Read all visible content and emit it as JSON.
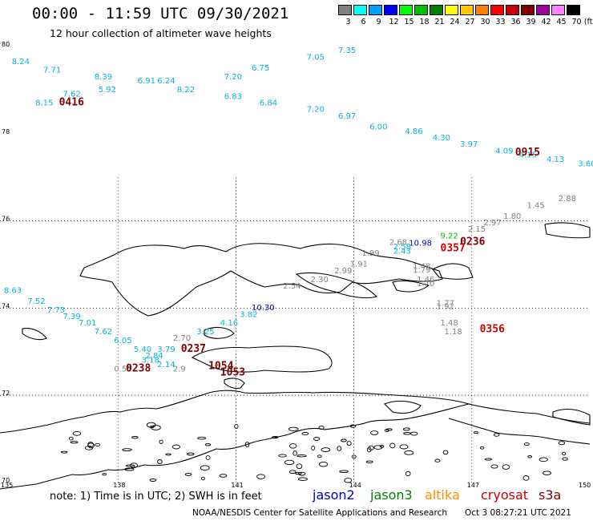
{
  "header": {
    "title": "00:00 - 11:59 UTC 09/30/2021",
    "subtitle": "12 hour collection of altimeter wave heights"
  },
  "colorbar": {
    "unit": "(ft)",
    "swatches": [
      {
        "label": "3",
        "color": "#808080"
      },
      {
        "label": "6",
        "color": "#00ffff"
      },
      {
        "label": "9",
        "color": "#00a0ff"
      },
      {
        "label": "12",
        "color": "#0000ff"
      },
      {
        "label": "15",
        "color": "#00ff00"
      },
      {
        "label": "18",
        "color": "#00c000"
      },
      {
        "label": "21",
        "color": "#008000"
      },
      {
        "label": "24",
        "color": "#ffff00"
      },
      {
        "label": "27",
        "color": "#ffc800"
      },
      {
        "label": "30",
        "color": "#ff8000"
      },
      {
        "label": "33",
        "color": "#ff0000"
      },
      {
        "label": "36",
        "color": "#c80000"
      },
      {
        "label": "39",
        "color": "#800000"
      },
      {
        "label": "42",
        "color": "#a000a0"
      },
      {
        "label": "45",
        "color": "#ff80ff"
      },
      {
        "label": "70",
        "color": "#000000"
      }
    ]
  },
  "axes": {
    "lat_labels": [
      "80",
      "78",
      "76",
      "74",
      "72",
      "70"
    ],
    "lon_labels": [
      "135",
      "138",
      "141",
      "144",
      "147",
      "150"
    ]
  },
  "footer": {
    "note": "note:  1) Time is in UTC;  2) SWH is in feet",
    "satellites": [
      {
        "name": "jason2",
        "color": "#0000cc"
      },
      {
        "name": "jason3",
        "color": "#008000"
      },
      {
        "name": "altika",
        "color": "#ff8c00"
      },
      {
        "name": "cryosat",
        "color": "#cc0000"
      },
      {
        "name": "s3a",
        "color": "#800000"
      }
    ],
    "credit": "NOAA/NESDIS Center for Satellite Applications and Research",
    "updated": "Oct  3 08:27:21 UTC 2021"
  },
  "observations": [
    {
      "lon": 135.3,
      "lat": 79.6,
      "value": "8.24",
      "color": "#00b4dc"
    },
    {
      "lon": 136.1,
      "lat": 79.4,
      "value": "7.71",
      "color": "#00b4dc"
    },
    {
      "lon": 137.4,
      "lat": 79.25,
      "value": "8.39",
      "color": "#00b4dc"
    },
    {
      "lon": 138.5,
      "lat": 79.15,
      "value": "6.91",
      "color": "#00b4dc"
    },
    {
      "lon": 139.0,
      "lat": 79.15,
      "value": "6.24",
      "color": "#00b4dc"
    },
    {
      "lon": 137.5,
      "lat": 78.95,
      "value": "5.92",
      "color": "#00b4dc"
    },
    {
      "lon": 139.5,
      "lat": 78.95,
      "value": "8.22",
      "color": "#00b4dc"
    },
    {
      "lon": 140.7,
      "lat": 79.25,
      "value": "7.20",
      "color": "#00b4dc"
    },
    {
      "lon": 136.6,
      "lat": 78.85,
      "value": "7.62",
      "color": "#00b4dc"
    },
    {
      "lon": 135.9,
      "lat": 78.65,
      "value": "8.15",
      "color": "#00b4dc"
    },
    {
      "lon": 140.7,
      "lat": 78.8,
      "value": "6.83",
      "color": "#00b4dc"
    },
    {
      "lon": 141.4,
      "lat": 79.45,
      "value": "6.75",
      "color": "#00b4dc"
    },
    {
      "lon": 141.6,
      "lat": 78.65,
      "value": "6.84",
      "color": "#00b4dc"
    },
    {
      "lon": 142.8,
      "lat": 79.7,
      "value": "7.05",
      "color": "#00b4dc"
    },
    {
      "lon": 142.8,
      "lat": 78.5,
      "value": "7.20",
      "color": "#00b4dc"
    },
    {
      "lon": 143.6,
      "lat": 79.85,
      "value": "7.35",
      "color": "#00b4dc"
    },
    {
      "lon": 143.6,
      "lat": 78.35,
      "value": "6.97",
      "color": "#00b4dc"
    },
    {
      "lon": 144.4,
      "lat": 78.1,
      "value": "6.00",
      "color": "#00b4dc"
    },
    {
      "lon": 145.3,
      "lat": 78.0,
      "value": "4.86",
      "color": "#00b4dc"
    },
    {
      "lon": 146.0,
      "lat": 77.85,
      "value": "4.30",
      "color": "#00b4dc"
    },
    {
      "lon": 146.7,
      "lat": 77.7,
      "value": "3.97",
      "color": "#00b4dc"
    },
    {
      "lon": 147.6,
      "lat": 77.55,
      "value": "4.09",
      "color": "#00b4dc"
    },
    {
      "lon": 148.2,
      "lat": 77.45,
      "value": "4.15",
      "color": "#00b4dc"
    },
    {
      "lon": 148.9,
      "lat": 77.35,
      "value": "4.13",
      "color": "#00b4dc"
    },
    {
      "lon": 149.7,
      "lat": 77.25,
      "value": "3.60",
      "color": "#00b4dc"
    },
    {
      "lon": 149.2,
      "lat": 76.45,
      "value": "2.88",
      "color": "#808080"
    },
    {
      "lon": 148.4,
      "lat": 76.3,
      "value": "1.45",
      "color": "#808080"
    },
    {
      "lon": 147.8,
      "lat": 76.05,
      "value": "1.80",
      "color": "#808080"
    },
    {
      "lon": 147.3,
      "lat": 75.9,
      "value": "2.97",
      "color": "#808080"
    },
    {
      "lon": 146.9,
      "lat": 75.75,
      "value": "2.15",
      "color": "#808080"
    },
    {
      "lon": 146.2,
      "lat": 75.6,
      "value": "9.22",
      "color": "#00c000"
    },
    {
      "lon": 144.9,
      "lat": 75.45,
      "value": "2.68",
      "color": "#808080"
    },
    {
      "lon": 145.4,
      "lat": 75.43,
      "value": "10.98",
      "color": "#0000cc"
    },
    {
      "lon": 145.0,
      "lat": 75.35,
      "value": "2.58",
      "color": "#00b4dc"
    },
    {
      "lon": 145.0,
      "lat": 75.25,
      "value": "2.43",
      "color": "#00b4dc"
    },
    {
      "lon": 144.2,
      "lat": 75.2,
      "value": "1.99",
      "color": "#808080"
    },
    {
      "lon": 143.9,
      "lat": 74.95,
      "value": "1.91",
      "color": "#808080"
    },
    {
      "lon": 145.5,
      "lat": 74.9,
      "value": "1.48",
      "color": "#808080"
    },
    {
      "lon": 145.5,
      "lat": 74.82,
      "value": "1.79",
      "color": "#808080"
    },
    {
      "lon": 143.5,
      "lat": 74.8,
      "value": "2.99",
      "color": "#808080"
    },
    {
      "lon": 142.9,
      "lat": 74.6,
      "value": "2.30",
      "color": "#808080"
    },
    {
      "lon": 145.6,
      "lat": 74.6,
      "value": "1.46",
      "color": "#808080"
    },
    {
      "lon": 145.6,
      "lat": 74.5,
      "value": "1.70",
      "color": "#808080"
    },
    {
      "lon": 142.2,
      "lat": 74.45,
      "value": "2.54",
      "color": "#808080"
    },
    {
      "lon": 135.1,
      "lat": 74.35,
      "value": "8.63",
      "color": "#00b4dc"
    },
    {
      "lon": 135.7,
      "lat": 74.1,
      "value": "7.52",
      "color": "#00b4dc"
    },
    {
      "lon": 146.1,
      "lat": 74.05,
      "value": "1.77",
      "color": "#808080"
    },
    {
      "lon": 146.1,
      "lat": 73.98,
      "value": "1.92",
      "color": "#808080"
    },
    {
      "lon": 141.4,
      "lat": 73.95,
      "value": "10.30",
      "color": "#0000cc"
    },
    {
      "lon": 136.2,
      "lat": 73.9,
      "value": "7.73",
      "color": "#00b4dc"
    },
    {
      "lon": 136.6,
      "lat": 73.75,
      "value": "7.39",
      "color": "#00b4dc"
    },
    {
      "lon": 141.1,
      "lat": 73.8,
      "value": "3.82",
      "color": "#00b4dc"
    },
    {
      "lon": 137.0,
      "lat": 73.6,
      "value": "7.01",
      "color": "#00b4dc"
    },
    {
      "lon": 140.6,
      "lat": 73.6,
      "value": "4.16",
      "color": "#00b4dc"
    },
    {
      "lon": 146.2,
      "lat": 73.6,
      "value": "1.48",
      "color": "#808080"
    },
    {
      "lon": 146.3,
      "lat": 73.4,
      "value": "1.18",
      "color": "#808080"
    },
    {
      "lon": 137.4,
      "lat": 73.4,
      "value": "7.62",
      "color": "#00b4dc"
    },
    {
      "lon": 140.0,
      "lat": 73.4,
      "value": "3.25",
      "color": "#00b4dc"
    },
    {
      "lon": 137.9,
      "lat": 73.2,
      "value": "6.05",
      "color": "#00b4dc"
    },
    {
      "lon": 139.4,
      "lat": 73.25,
      "value": "2.70",
      "color": "#808080"
    },
    {
      "lon": 138.4,
      "lat": 73.0,
      "value": "5.40",
      "color": "#00b4dc"
    },
    {
      "lon": 139.0,
      "lat": 73.0,
      "value": "3.79",
      "color": "#00b4dc"
    },
    {
      "lon": 138.7,
      "lat": 72.85,
      "value": "2.84",
      "color": "#00b4dc"
    },
    {
      "lon": 138.6,
      "lat": 72.75,
      "value": "3.18",
      "color": "#00b4dc"
    },
    {
      "lon": 139.0,
      "lat": 72.65,
      "value": "2.14",
      "color": "#00b4dc"
    },
    {
      "lon": 137.9,
      "lat": 72.55,
      "value": "0.55",
      "color": "#808080"
    },
    {
      "lon": 139.4,
      "lat": 72.55,
      "value": "2.9",
      "color": "#808080"
    }
  ],
  "pass_times": [
    {
      "lon": 136.5,
      "lat": 78.65,
      "value": "0416",
      "color": "#800000"
    },
    {
      "lon": 148.1,
      "lat": 77.5,
      "value": "0915",
      "color": "#800000"
    },
    {
      "lon": 146.7,
      "lat": 75.45,
      "value": "0236",
      "color": "#800000"
    },
    {
      "lon": 146.2,
      "lat": 75.3,
      "value": "0357",
      "color": "#cc0000"
    },
    {
      "lon": 147.2,
      "lat": 73.45,
      "value": "0356",
      "color": "#cc0000"
    },
    {
      "lon": 139.6,
      "lat": 73.0,
      "value": "0237",
      "color": "#800000"
    },
    {
      "lon": 138.2,
      "lat": 72.55,
      "value": "0238",
      "color": "#800000"
    },
    {
      "lon": 140.3,
      "lat": 72.6,
      "value": "1054",
      "color": "#800000"
    },
    {
      "lon": 140.6,
      "lat": 72.45,
      "value": "1053",
      "color": "#800000"
    }
  ]
}
